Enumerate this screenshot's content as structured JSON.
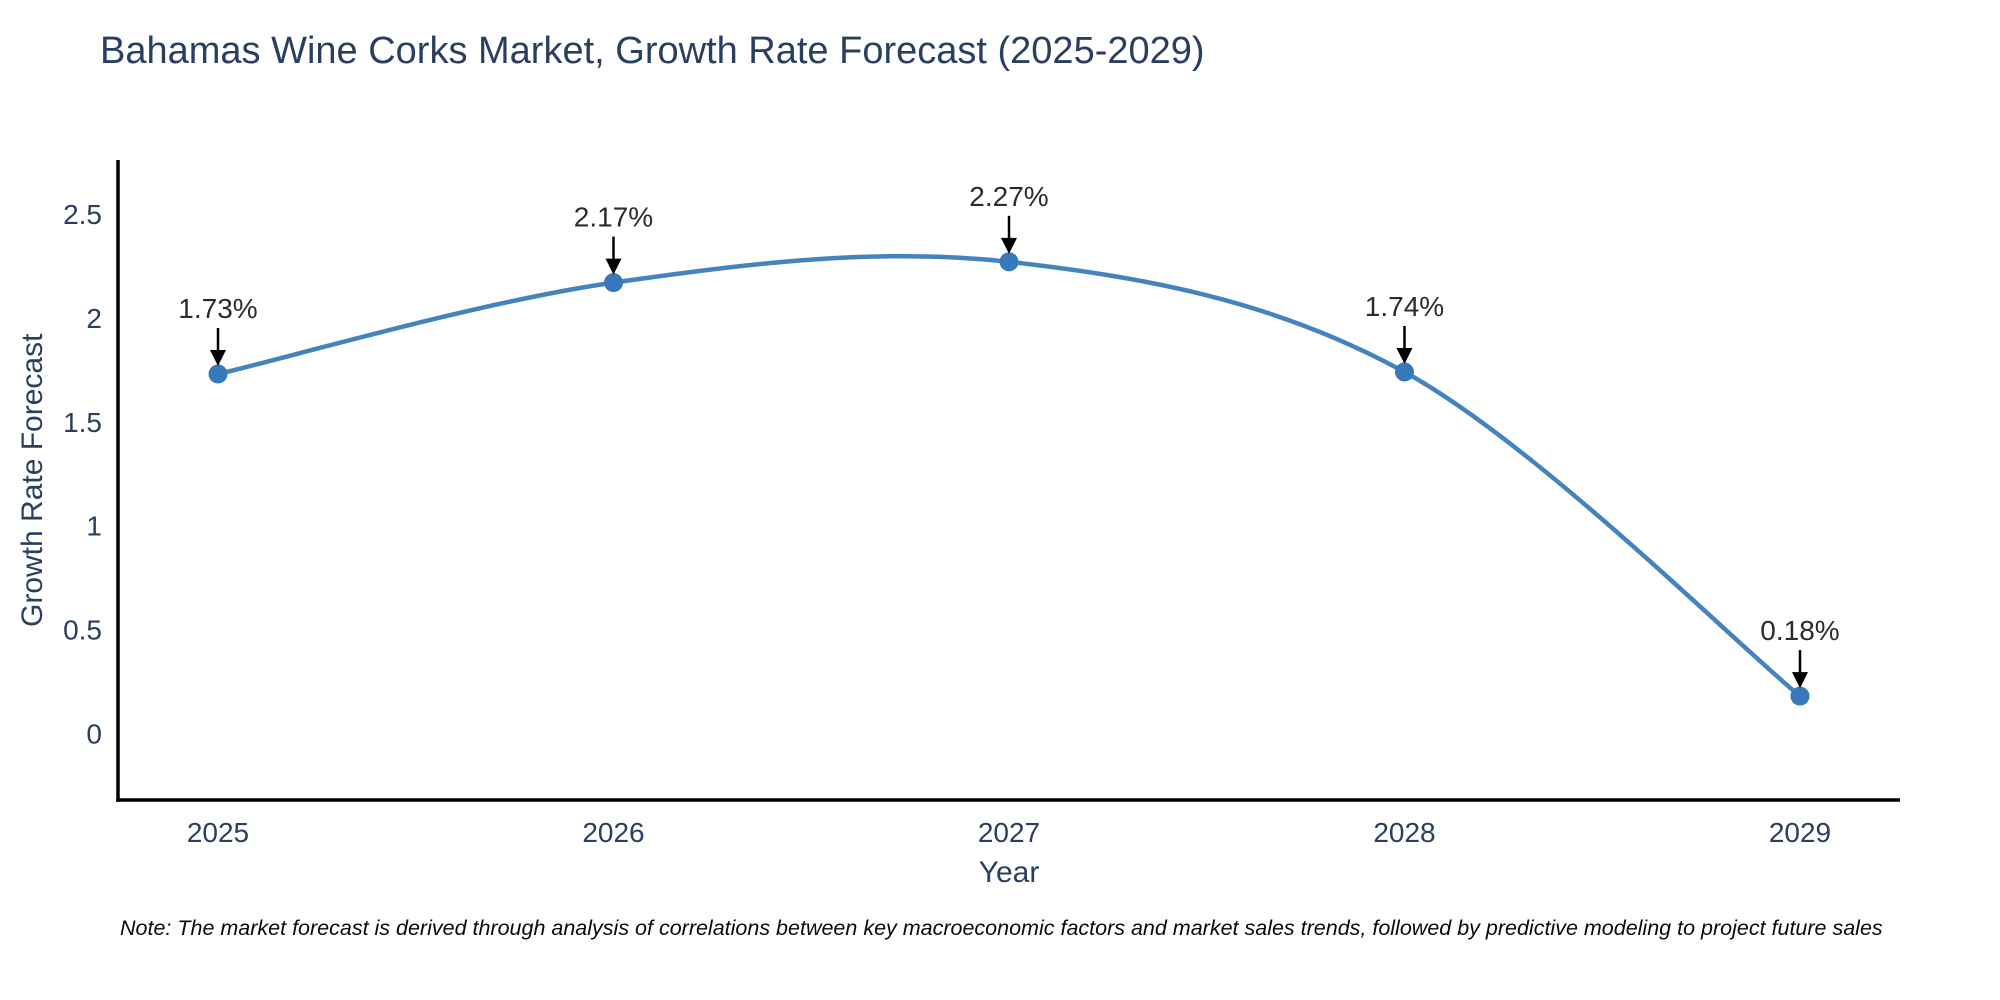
{
  "note": "Note: The market forecast is derived through analysis of correlations between key macroeconomic factors and market sales trends, followed by predictive modeling to project future sales",
  "chart_data": {
    "type": "line",
    "title": "Bahamas Wine Corks Market, Growth Rate Forecast (2025-2029)",
    "xlabel": "Year",
    "ylabel": "Growth Rate Forecast",
    "categories": [
      "2025",
      "2026",
      "2027",
      "2028",
      "2029"
    ],
    "series": [
      {
        "name": "Growth Rate Forecast",
        "values": [
          1.73,
          2.17,
          2.27,
          1.74,
          0.18
        ]
      }
    ],
    "point_labels": [
      "1.73%",
      "2.17%",
      "2.27%",
      "1.74%",
      "0.18%"
    ],
    "yticks": [
      0,
      0.5,
      1,
      1.5,
      2,
      2.5
    ],
    "ytick_labels": [
      "0",
      "0.5",
      "1",
      "1.5",
      "2",
      "2.5"
    ],
    "ylim": [
      -0.32,
      2.76
    ],
    "grid": false,
    "legend": "none",
    "curve": "smooth",
    "colors": {
      "line": "#4483bd",
      "marker": "#3879bb",
      "axis": "#000000",
      "text": "#2a3f5f",
      "annotation": "#2b2b2b"
    }
  }
}
